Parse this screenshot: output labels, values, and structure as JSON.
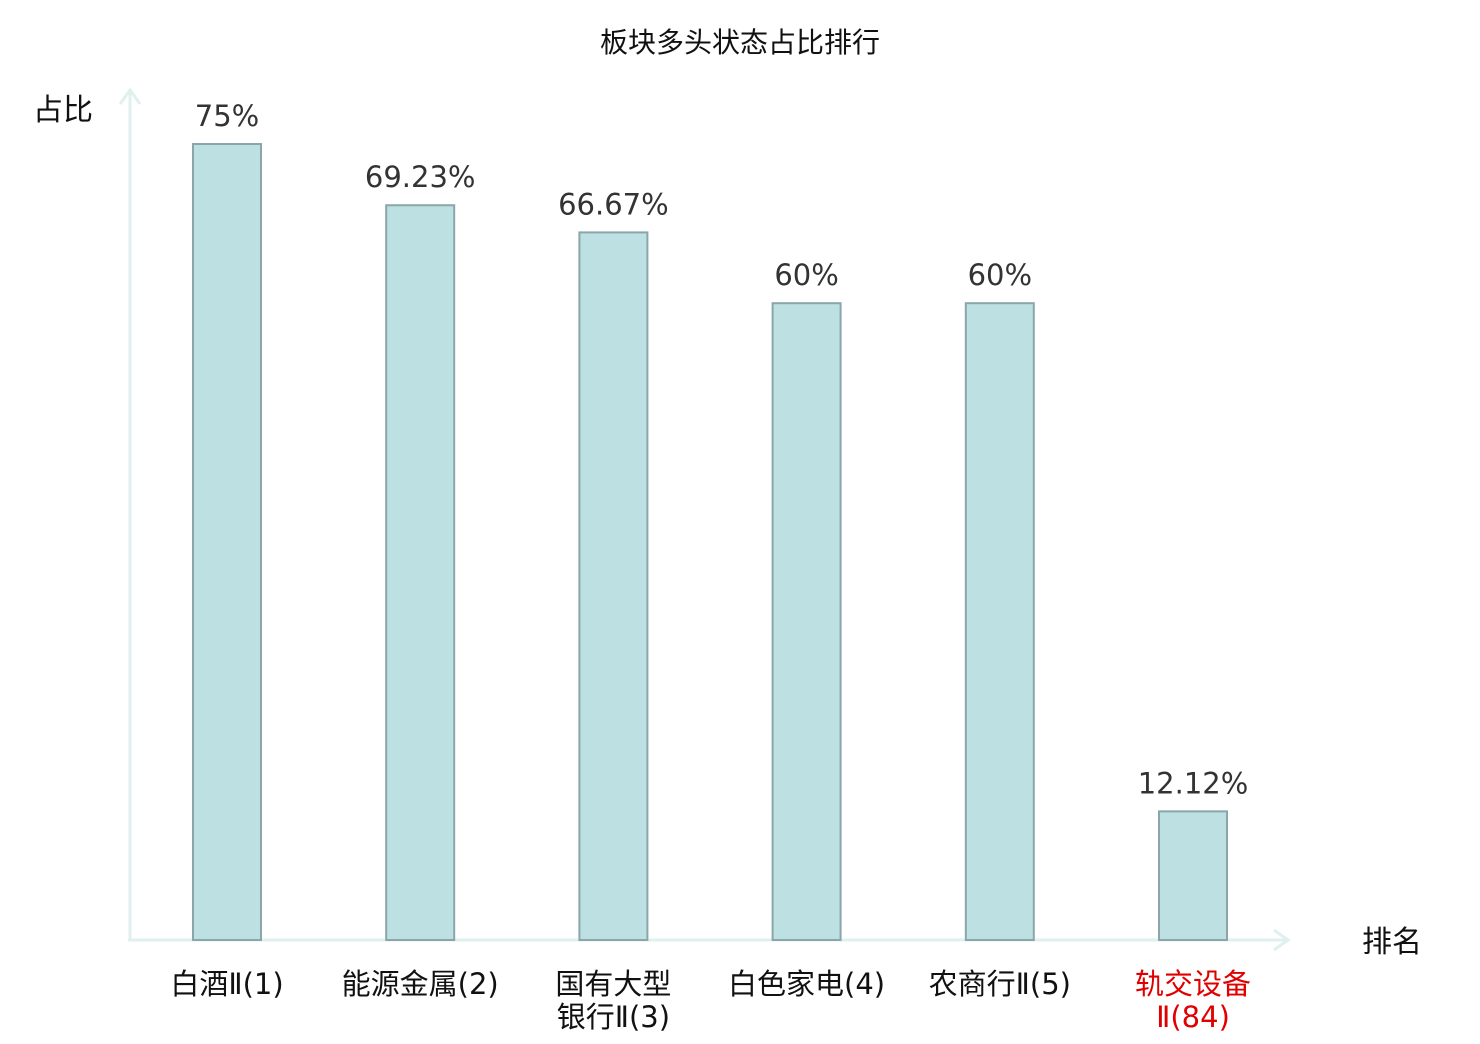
{
  "chart_data": {
    "type": "bar",
    "title": "板块多头状态占比排行",
    "ylabel": "占比",
    "xlabel": "排名",
    "categories": [
      {
        "lines": [
          "白酒Ⅱ(1)"
        ],
        "highlight": false
      },
      {
        "lines": [
          "能源金属(2)"
        ],
        "highlight": false
      },
      {
        "lines": [
          "国有大型",
          "银行Ⅱ(3)"
        ],
        "highlight": false
      },
      {
        "lines": [
          "白色家电(4)"
        ],
        "highlight": false
      },
      {
        "lines": [
          "农商行Ⅱ(5)"
        ],
        "highlight": false
      },
      {
        "lines": [
          "轨交设备",
          "Ⅱ(84)"
        ],
        "highlight": true
      }
    ],
    "values": [
      75,
      69.23,
      66.67,
      60,
      60,
      12.12
    ],
    "value_labels": [
      "75%",
      "69.23%",
      "66.67%",
      "60%",
      "60%",
      "12.12%"
    ],
    "ylim": [
      0,
      75
    ],
    "grid": false,
    "colors": {
      "bar_fill": "#bde0e3",
      "bar_stroke": "#8aa6aa",
      "axis": "#dff0ee",
      "text": "#333333",
      "label": "#111111",
      "highlight": "#e00000"
    }
  }
}
